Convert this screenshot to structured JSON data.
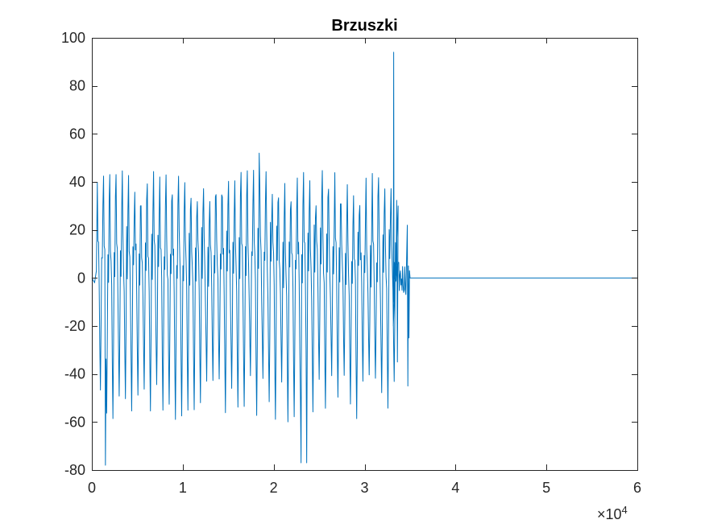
{
  "chart_data": {
    "type": "line",
    "title": "Brzuszki",
    "xlabel": "",
    "ylabel": "",
    "xlim": [
      0,
      60000
    ],
    "ylim": [
      -80,
      100
    ],
    "grid": false,
    "legend": "none",
    "x_tick_labels": [
      "0",
      "1",
      "2",
      "3",
      "4",
      "5",
      "6"
    ],
    "x_tick_values": [
      0,
      10000,
      20000,
      30000,
      40000,
      50000,
      60000
    ],
    "x_exponent_label": "×10",
    "x_exponent_power": "4",
    "y_tick_labels": [
      "-80",
      "-60",
      "-40",
      "-20",
      "0",
      "20",
      "40",
      "60",
      "80",
      "100"
    ],
    "y_tick_values": [
      -80,
      -60,
      -40,
      -20,
      0,
      20,
      40,
      60,
      80,
      100
    ],
    "series": [
      {
        "color": "#0072bd",
        "description_points": {
          "active_region_end_x": 35000,
          "oscillation_cycles": 48,
          "typical_max": [
            30,
            45
          ],
          "typical_min": [
            -40,
            -62
          ],
          "spike_max": {
            "x": 33200,
            "y": 94
          },
          "extreme_mins": [
            {
              "x": 1500,
              "y": -78
            },
            {
              "x": 23000,
              "y": -77
            },
            {
              "x": 23600,
              "y": -77
            }
          ],
          "flat_value_after": 0
        }
      }
    ]
  }
}
